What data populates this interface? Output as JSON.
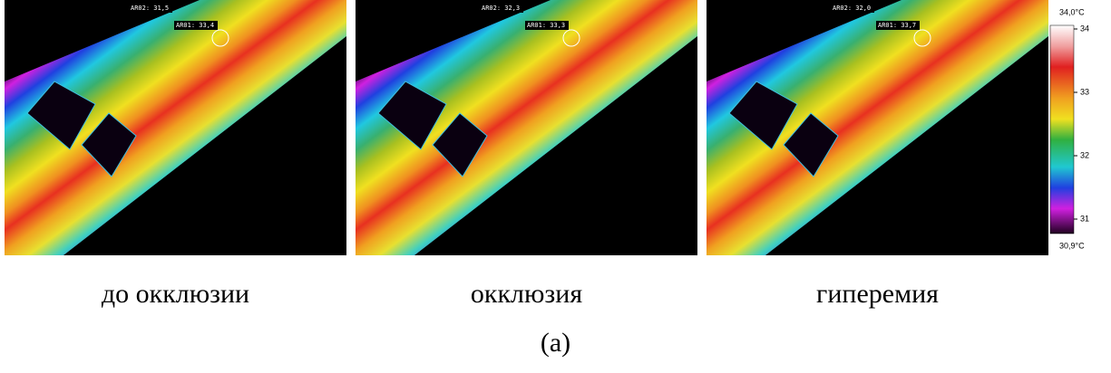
{
  "panels": [
    {
      "roi2": "AR02: 31,5",
      "roi1": "AR01: 33,4",
      "caption": "до окклюзии"
    },
    {
      "roi2": "AR02: 32,3",
      "roi1": "AR01: 33,3",
      "caption": "окклюзия"
    },
    {
      "roi2": "AR02: 32,0",
      "roi1": "AR01: 33,7",
      "caption": "гиперемия"
    }
  ],
  "scale": {
    "max_label": "34,0°C",
    "min_label": "30,9°C",
    "ticks": [
      "34",
      "33",
      "32",
      "31"
    ]
  },
  "figure_label": "(a)"
}
